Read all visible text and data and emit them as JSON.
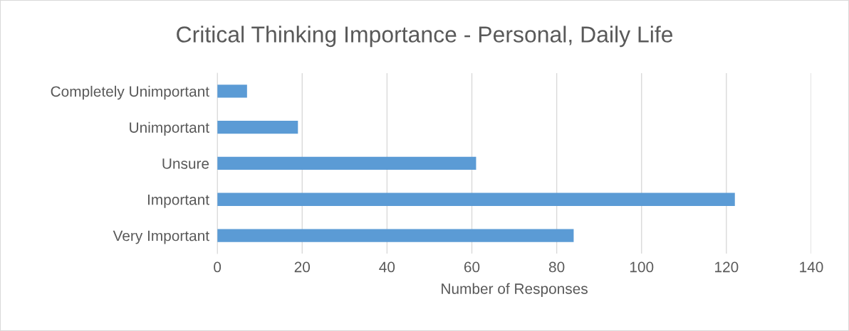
{
  "chart_data": {
    "type": "bar",
    "orientation": "horizontal",
    "title": "Critical Thinking Importance - Personal, Daily Life",
    "xlabel": "Number of Responses",
    "categories": [
      "Completely Unimportant",
      "Unimportant",
      "Unsure",
      "Important",
      "Very Important"
    ],
    "values": [
      7,
      19,
      61,
      122,
      84
    ],
    "color": "#5b9bd5",
    "xlim": [
      0,
      140
    ],
    "xticks": [
      0,
      20,
      40,
      60,
      80,
      100,
      120,
      140
    ],
    "grid": "x",
    "legend": false
  }
}
